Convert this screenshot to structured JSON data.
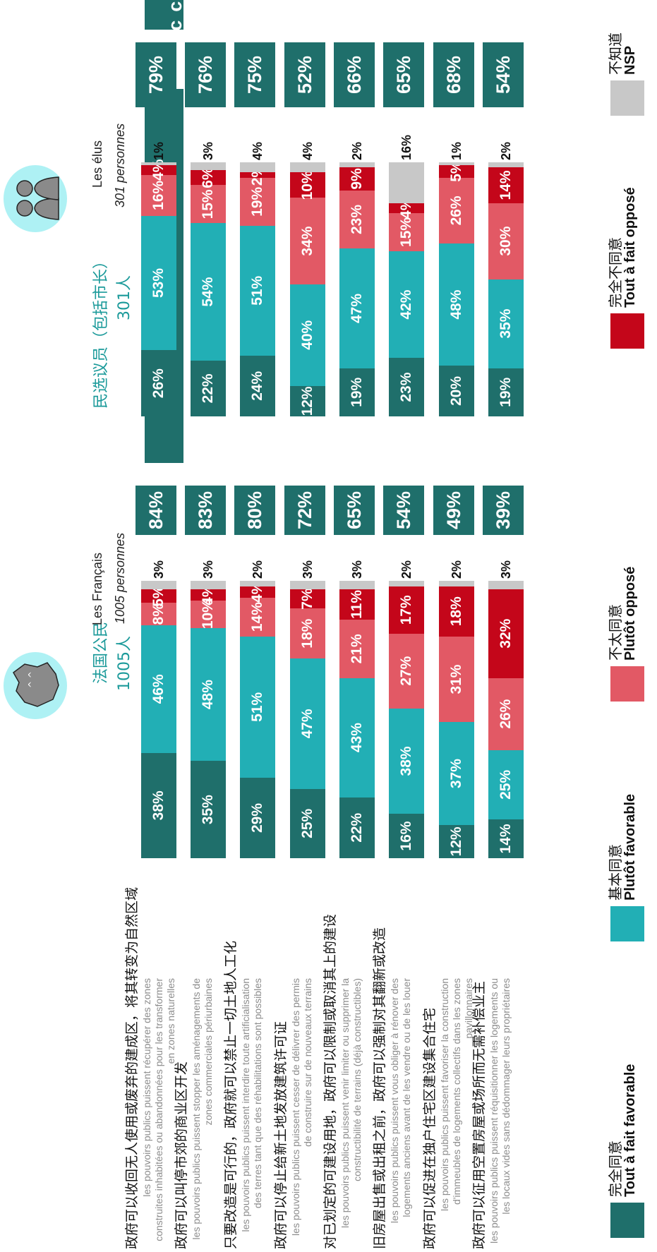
{
  "colors": {
    "tout_favorable": "#1f6f6b",
    "plutot_favorable": "#22afb5",
    "plutot_oppose": "#e25965",
    "tout_oppose": "#c4061a",
    "nsp": "#c8c8c8",
    "banner": "#1f6f6b",
    "group_title": "#1b9a9a"
  },
  "groups": {
    "francais": {
      "zh": "法国公民",
      "zh_count": "1005人",
      "fr": "Les Français",
      "fr_count": "1005 personnes"
    },
    "elus": {
      "zh": "民选议员（包括市长）",
      "zh_count": "301人",
      "fr": "Les élus",
      "fr_count": "301 personnes"
    }
  },
  "banner_label": "% D’accord",
  "questions": [
    {
      "zh": "政府可以收回无人使用或废弃的建成区，将其转变为自然区域",
      "fr": "les pouvoirs publics puissent récupérer des zones construites inhabitées ou abandonnées pour les transformer en zones naturelles"
    },
    {
      "zh": "政府可以叫停市郊的商业区开发",
      "fr": "les pouvoirs publics puissent stopper les aménagements de zones commerciales périurbaines"
    },
    {
      "zh": "只要改造是可行的，政府就可以禁止一切土地人工化",
      "fr": "les pouvoirs publics puissent interdire toute artificialisation des terres tant que des réhabilitations sont possibles"
    },
    {
      "zh": "政府可以停止给新土地发放建筑许可证",
      "fr": "les pouvoirs publics puissent cesser de délivrer des permis de construire sur de nouveaux terrains"
    },
    {
      "zh": "对已划定的可建设用地，政府可以限制或取消其上的建设",
      "fr": "les pouvoirs publics puissent venir limiter ou supprimer la constructibilité de terrains (déjà constructibles)"
    },
    {
      "zh": "旧房屋出售或出租之前，政府可以强制对其翻新或改造",
      "fr": "les pouvoirs publics puissent vous obliger à rénover des logements anciens avant de les vendre ou de les louer"
    },
    {
      "zh": "政府可以促进在独户住宅区建设集合住宅",
      "fr": "les pouvoirs publics puissent favoriser la construction d'immeubles de logements collectifs dans les zones pavillonnaires"
    },
    {
      "zh": "政府可以征用空置房屋或场所而无需补偿业主",
      "fr": "les pouvoirs publics puissent réquisitionner les logements ou les locaux vides sans dédommager leurs propriétaires"
    }
  ],
  "chart_data": [
    {
      "type": "bar",
      "orientation": "stacked-100",
      "title": "Les Français — 1005 personnes",
      "series_order": [
        "Tout à fait favorable",
        "Plutôt favorable",
        "Plutôt opposé",
        "Tout à fait opposé",
        "NSP"
      ],
      "rows": [
        {
          "values": [
            38,
            46,
            8,
            5,
            3
          ],
          "labels": [
            "38%",
            "46%",
            "8%",
            "5%",
            "3%"
          ],
          "total": "84%"
        },
        {
          "values": [
            35,
            48,
            10,
            4,
            3
          ],
          "labels": [
            "35%",
            "48%",
            "10%",
            "4%",
            "3%"
          ],
          "total": "83%"
        },
        {
          "values": [
            29,
            51,
            14,
            4,
            2
          ],
          "labels": [
            "29%",
            "51%",
            "14%",
            "4%",
            "2%"
          ],
          "total": "80%"
        },
        {
          "values": [
            25,
            47,
            18,
            7,
            3
          ],
          "labels": [
            "25%",
            "47%",
            "18%",
            "7%",
            "3%"
          ],
          "total": "72%"
        },
        {
          "values": [
            22,
            43,
            21,
            11,
            3
          ],
          "labels": [
            "22%",
            "43%",
            "21%",
            "11%",
            "3%"
          ],
          "total": "65%"
        },
        {
          "values": [
            16,
            38,
            27,
            17,
            2
          ],
          "labels": [
            "16%",
            "38%",
            "27%",
            "17%",
            "2%"
          ],
          "total": "54%"
        },
        {
          "values": [
            12,
            37,
            31,
            18,
            2
          ],
          "labels": [
            "12%",
            "37%",
            "31%",
            "18%",
            "2%"
          ],
          "total": "49%"
        },
        {
          "values": [
            14,
            25,
            26,
            32,
            3
          ],
          "labels": [
            "14%",
            "25%",
            "26%",
            "32%",
            "3%"
          ],
          "total": "39%"
        }
      ]
    },
    {
      "type": "bar",
      "orientation": "stacked-100",
      "title": "Les élus — 301 personnes",
      "series_order": [
        "Tout à fait favorable",
        "Plutôt favorable",
        "Plutôt opposé",
        "Tout à fait opposé",
        "NSP"
      ],
      "rows": [
        {
          "values": [
            26,
            53,
            16,
            4,
            1
          ],
          "labels": [
            "26%",
            "53%",
            "16%",
            "4%",
            "1%"
          ],
          "total": "79%"
        },
        {
          "values": [
            22,
            54,
            15,
            6,
            3
          ],
          "labels": [
            "22%",
            "54%",
            "15%",
            "6%",
            "3%"
          ],
          "total": "76%"
        },
        {
          "values": [
            24,
            51,
            19,
            2,
            4
          ],
          "labels": [
            "24%",
            "51%",
            "19%",
            "2%",
            "4%"
          ],
          "total": "75%"
        },
        {
          "values": [
            12,
            40,
            34,
            10,
            4
          ],
          "labels": [
            "12%",
            "40%",
            "34%",
            "10%",
            "4%"
          ],
          "total": "52%"
        },
        {
          "values": [
            19,
            47,
            23,
            9,
            2
          ],
          "labels": [
            "19%",
            "47%",
            "23%",
            "9%",
            "2%"
          ],
          "total": "66%"
        },
        {
          "values": [
            23,
            42,
            15,
            4,
            16
          ],
          "labels": [
            "23%",
            "42%",
            "15%",
            "4%",
            "16%"
          ],
          "total": "65%"
        },
        {
          "values": [
            20,
            48,
            26,
            5,
            1
          ],
          "labels": [
            "20%",
            "48%",
            "26%",
            "5%",
            "1%"
          ],
          "total": "68%"
        },
        {
          "values": [
            19,
            35,
            30,
            14,
            2
          ],
          "labels": [
            "19%",
            "35%",
            "30%",
            "14%",
            "2%"
          ],
          "total": "54%"
        }
      ]
    }
  ],
  "legend": [
    {
      "zh": "完全同意",
      "fr": "Tout à fait favorable",
      "color": "#1f6f6b"
    },
    {
      "zh": "基本同意",
      "fr": "Plutôt favorable",
      "color": "#22afb5"
    },
    {
      "zh": "不太同意",
      "fr": "Plutôt opposé",
      "color": "#e25965"
    },
    {
      "zh": "完全不同意",
      "fr": "Tout à fait opposé",
      "color": "#c4061a"
    },
    {
      "zh": "不知道",
      "fr": "NSP",
      "color": "#c8c8c8"
    }
  ]
}
